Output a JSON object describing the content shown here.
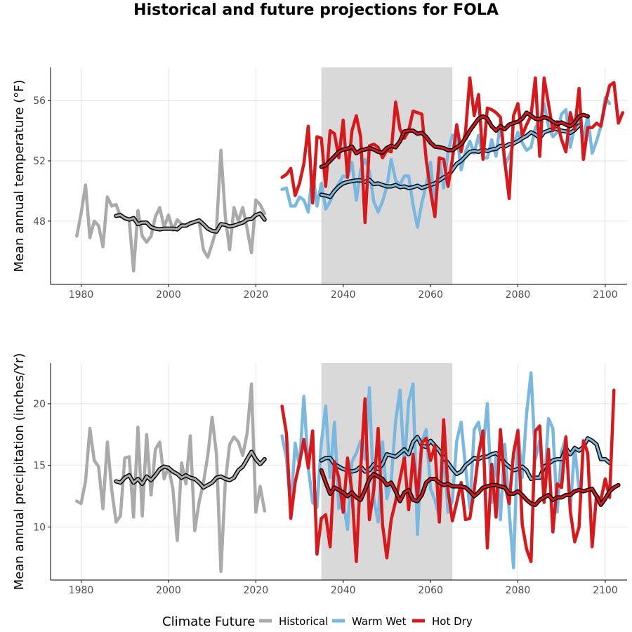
{
  "chart_title": "Historical and future projections for FOLA",
  "colors": {
    "Historical": "#aaaaaa",
    "Warm Wet": "#7ab8e0",
    "Hot Dry": "#d7191c",
    "shading": "#d9d9d9"
  },
  "legend": {
    "title": "Climate Future",
    "entries": [
      "Historical",
      "Warm Wet",
      "Hot Dry"
    ],
    "position": "bottom"
  },
  "chart_data": [
    {
      "type": "line",
      "ylabel": "Mean annual temperature (°F)",
      "xlim": [
        1973,
        2105
      ],
      "ylim": [
        43.8,
        58.2
      ],
      "xticks": [
        1980,
        2000,
        2020,
        2040,
        2060,
        2080,
        2100
      ],
      "yticks": [
        48,
        52,
        56
      ],
      "shaded_period": [
        2035,
        2065
      ],
      "grid": true,
      "series": [
        {
          "name": "Historical",
          "role": "annual",
          "start": 1979,
          "values": [
            47.0,
            48.5,
            50.4,
            46.9,
            48.0,
            47.7,
            46.3,
            49.6,
            49.0,
            49.1,
            48.3,
            48.2,
            48.1,
            44.7,
            48.7,
            47.0,
            46.6,
            47.0,
            48.3,
            48.9,
            47.6,
            48.4,
            47.4,
            48.1,
            47.8,
            47.7,
            47.9,
            47.9,
            48.0,
            46.1,
            45.6,
            46.5,
            47.5,
            52.7,
            48.3,
            46.1,
            48.9,
            48.0,
            48.9,
            47.5,
            45.9,
            49.4,
            49.1,
            48.5
          ]
        },
        {
          "name": "Historical",
          "role": "rolling",
          "start": 1988,
          "values": [
            48.35,
            48.4,
            48.2,
            48.1,
            48.2,
            47.8,
            47.9,
            47.9,
            47.6,
            47.5,
            47.45,
            47.5,
            47.5,
            47.5,
            47.45,
            47.7,
            47.7,
            47.85,
            47.95,
            48.05,
            47.8,
            47.5,
            47.35,
            47.3,
            47.8,
            47.75,
            47.65,
            47.7,
            47.8,
            47.9,
            48.1,
            48.15,
            48.4,
            48.5,
            48.1
          ]
        },
        {
          "name": "Warm Wet",
          "role": "annual",
          "start": 2026,
          "values": [
            50.1,
            50.2,
            49.0,
            49.0,
            49.6,
            49.4,
            48.6,
            51.3,
            49.0,
            50.5,
            48.8,
            49.3,
            50.0,
            50.5,
            51.0,
            50.9,
            51.9,
            49.4,
            51.4,
            52.1,
            51.3,
            49.3,
            48.6,
            49.3,
            50.3,
            52.1,
            50.7,
            50.4,
            51.0,
            51.0,
            49.1,
            47.6,
            49.2,
            50.4,
            51.9,
            49.0,
            52.2,
            50.2,
            52.6,
            53.7,
            53.7,
            51.4,
            52.6,
            53.3,
            52.5,
            53.7,
            52.2,
            52.2,
            53.4,
            52.3,
            54.6,
            51.7,
            52.3,
            53.1,
            53.9,
            53.2,
            52.7,
            52.9,
            54.2,
            54.6,
            55.8,
            54.3,
            53.6,
            53.9,
            55.1,
            55.4,
            52.9,
            54.3,
            54.8,
            53.5,
            55.0,
            52.5,
            53.3,
            54.3,
            56.2,
            55.8
          ]
        },
        {
          "name": "Warm Wet",
          "role": "rolling",
          "start": 2035,
          "values": [
            49.75,
            49.7,
            49.6,
            50.0,
            50.3,
            50.5,
            50.6,
            50.65,
            50.7,
            50.7,
            50.6,
            50.75,
            50.45,
            50.5,
            50.4,
            50.3,
            50.3,
            50.4,
            50.25,
            50.3,
            50.2,
            50.25,
            50.35,
            50.2,
            50.3,
            50.4,
            50.5,
            50.7,
            50.9,
            51.0,
            51.4,
            51.8,
            52.0,
            52.3,
            52.6,
            52.65,
            52.6,
            52.75,
            52.65,
            52.75,
            52.8,
            53.0,
            52.95,
            53.1,
            53.15,
            53.3,
            53.5,
            53.65,
            53.9,
            53.75,
            53.5,
            53.9,
            54.0,
            54.1,
            54.1,
            54.0,
            53.95,
            53.85,
            54.05,
            54.35
          ]
        },
        {
          "name": "Hot Dry",
          "role": "annual",
          "start": 2026,
          "values": [
            50.9,
            51.1,
            51.5,
            49.7,
            50.5,
            51.8,
            54.3,
            49.2,
            53.6,
            53.5,
            50.3,
            54.0,
            53.8,
            52.2,
            54.7,
            50.9,
            54.0,
            55.0,
            53.6,
            47.9,
            53.0,
            53.1,
            52.9,
            52.2,
            52.7,
            52.6,
            55.9,
            54.1,
            53.5,
            54.0,
            55.3,
            55.2,
            55.1,
            52.1,
            50.0,
            48.3,
            52.2,
            52.1,
            50.3,
            52.1,
            54.4,
            52.6,
            53.9,
            57.5,
            55.0,
            56.4,
            52.1,
            55.5,
            55.4,
            55.2,
            54.9,
            52.0,
            49.5,
            55.0,
            55.8,
            53.7,
            54.4,
            55.0,
            57.5,
            52.3,
            57.5,
            55.8,
            54.0,
            54.6,
            53.4,
            52.6,
            55.2,
            54.1,
            56.8,
            52.1,
            54.2,
            54.2,
            54.5,
            54.3,
            55.8,
            57.0,
            57.2,
            54.5,
            55.2
          ]
        },
        {
          "name": "Hot Dry",
          "role": "rolling",
          "start": 2035,
          "values": [
            51.6,
            51.7,
            52.0,
            52.3,
            52.6,
            52.75,
            52.8,
            52.95,
            52.5,
            52.7,
            52.75,
            52.85,
            52.75,
            52.6,
            52.55,
            52.85,
            53.0,
            52.9,
            53.3,
            53.95,
            54.0,
            54.0,
            53.8,
            53.85,
            53.6,
            53.2,
            52.95,
            52.9,
            52.85,
            52.7,
            52.7,
            52.9,
            53.1,
            53.5,
            54.0,
            54.4,
            54.8,
            54.95,
            54.8,
            54.3,
            54.0,
            54.3,
            54.1,
            54.4,
            54.5,
            54.6,
            54.8,
            55.2,
            55.0,
            54.8,
            54.75,
            54.9,
            54.8,
            54.6,
            54.45,
            54.55,
            54.4,
            54.3,
            54.55,
            54.95,
            55.05,
            54.95
          ]
        }
      ]
    },
    {
      "type": "line",
      "ylabel": "Mean annual precipitation (inches/Yr)",
      "xlim": [
        1973,
        2105
      ],
      "ylim": [
        5.7,
        23.3
      ],
      "xticks": [
        1980,
        2000,
        2020,
        2040,
        2060,
        2080,
        2100
      ],
      "yticks": [
        10,
        15,
        20
      ],
      "shaded_period": [
        2035,
        2065
      ],
      "grid": true,
      "series": [
        {
          "name": "Historical",
          "role": "annual",
          "start": 1979,
          "values": [
            12.1,
            11.9,
            13.7,
            18.0,
            15.4,
            14.9,
            11.5,
            16.9,
            13.0,
            10.4,
            10.9,
            15.6,
            15.7,
            10.8,
            18.1,
            10.9,
            17.5,
            12.6,
            16.3,
            16.9,
            13.9,
            14.9,
            13.1,
            8.9,
            15.2,
            13.5,
            17.4,
            9.7,
            12.0,
            13.6,
            15.8,
            18.9,
            15.9,
            6.4,
            13.6,
            16.7,
            17.3,
            16.9,
            15.8,
            17.6,
            21.6,
            11.2,
            13.3,
            11.3
          ]
        },
        {
          "name": "Historical",
          "role": "rolling",
          "start": 1988,
          "values": [
            13.7,
            13.6,
            14.0,
            14.2,
            13.6,
            13.9,
            13.5,
            14.1,
            13.8,
            14.2,
            14.7,
            14.9,
            14.8,
            14.5,
            14.3,
            14.0,
            14.2,
            14.0,
            13.9,
            13.6,
            13.2,
            13.4,
            13.6,
            14.0,
            14.1,
            13.9,
            13.8,
            14.0,
            14.6,
            14.9,
            15.5,
            16.1,
            15.5,
            15.1,
            15.5
          ]
        },
        {
          "name": "Warm Wet",
          "role": "annual",
          "start": 2026,
          "values": [
            17.4,
            15.6,
            11.5,
            16.8,
            14.9,
            20.6,
            14.8,
            12.0,
            11.6,
            16.8,
            19.8,
            14.0,
            18.5,
            11.5,
            12.2,
            9.8,
            15.3,
            16.0,
            17.0,
            15.5,
            21.3,
            12.3,
            10.4,
            16.9,
            12.3,
            13.8,
            18.6,
            21.1,
            14.9,
            20.2,
            21.6,
            9.4,
            16.9,
            17.9,
            13.1,
            12.2,
            10.8,
            16.3,
            11.2,
            12.1,
            17.0,
            18.5,
            14.9,
            11.5,
            17.9,
            18.5,
            16.3,
            20.0,
            12.0,
            15.8,
            10.6,
            16.7,
            11.3,
            6.7,
            17.9,
            14.0,
            19.2,
            22.5,
            15.5,
            17.0,
            12.7,
            18.8,
            18.0,
            11.2,
            16.1,
            17.3,
            11.4,
            16.5,
            13.0
          ]
        },
        {
          "name": "Warm Wet",
          "role": "rolling",
          "start": 2035,
          "values": [
            15.4,
            15.6,
            15.6,
            15.1,
            14.9,
            14.7,
            14.6,
            14.5,
            14.6,
            14.9,
            14.5,
            14.6,
            15.1,
            14.7,
            15.1,
            15.9,
            15.8,
            15.7,
            16.0,
            16.3,
            15.9,
            16.9,
            17.3,
            16.6,
            16.5,
            17.0,
            16.6,
            16.2,
            15.6,
            15.2,
            14.7,
            14.3,
            14.5,
            15.0,
            15.3,
            15.6,
            15.5,
            15.7,
            15.7,
            15.9,
            16.0,
            15.7,
            15.2,
            14.9,
            14.6,
            14.7,
            14.9,
            14.6,
            13.9,
            14.0,
            14.0,
            14.9,
            15.1,
            15.4,
            15.5,
            15.5,
            16.4,
            15.9,
            16.4,
            16.2,
            16.5,
            17.2,
            17.0,
            16.7,
            15.5,
            15.5,
            15.2
          ]
        },
        {
          "name": "Hot Dry",
          "role": "annual",
          "start": 2026,
          "values": [
            19.8,
            17.6,
            10.7,
            13.6,
            15.2,
            17.1,
            14.8,
            17.8,
            7.8,
            10.7,
            11.0,
            8.4,
            15.3,
            14.0,
            11.2,
            15.6,
            12.9,
            7.2,
            14.7,
            20.4,
            10.6,
            13.0,
            18.0,
            10.2,
            7.5,
            10.6,
            12.1,
            13.9,
            15.6,
            11.4,
            15.9,
            12.4,
            16.8,
            17.2,
            15.4,
            16.6,
            10.4,
            18.7,
            13.0,
            10.5,
            12.0,
            13.6,
            10.6,
            10.7,
            13.0,
            15.9,
            17.8,
            8.3,
            15.1,
            10.8,
            17.9,
            13.5,
            11.9,
            16.0,
            17.8,
            10.2,
            8.2,
            7.2,
            17.8,
            18.2,
            12.0,
            16.3,
            9.6,
            13.5,
            13.2,
            17.3,
            11.3,
            8.8,
            10.0,
            17.0,
            16.0,
            8.4,
            12.6,
            12.2,
            13.9,
            12.4,
            21.1
          ]
        },
        {
          "name": "Hot Dry",
          "role": "rolling",
          "start": 2035,
          "values": [
            14.6,
            13.6,
            12.7,
            13.2,
            13.0,
            12.8,
            12.5,
            12.8,
            12.4,
            12.2,
            13.0,
            13.9,
            14.3,
            14.1,
            13.9,
            13.4,
            13.6,
            12.9,
            12.1,
            12.8,
            13.0,
            12.2,
            12.1,
            12.6,
            13.6,
            13.9,
            13.9,
            13.6,
            13.4,
            13.5,
            13.3,
            13.3,
            13.3,
            13.2,
            12.9,
            12.5,
            12.8,
            13.2,
            13.3,
            13.4,
            13.4,
            13.3,
            13.2,
            12.7,
            12.7,
            12.9,
            12.6,
            12.2,
            11.9,
            11.8,
            12.2,
            12.4,
            12.6,
            12.2,
            12.4,
            12.4,
            12.6,
            12.6,
            12.9,
            13.0,
            12.9,
            13.0,
            13.1,
            12.5,
            11.8,
            12.3,
            12.9,
            13.2,
            13.4
          ]
        }
      ]
    }
  ]
}
